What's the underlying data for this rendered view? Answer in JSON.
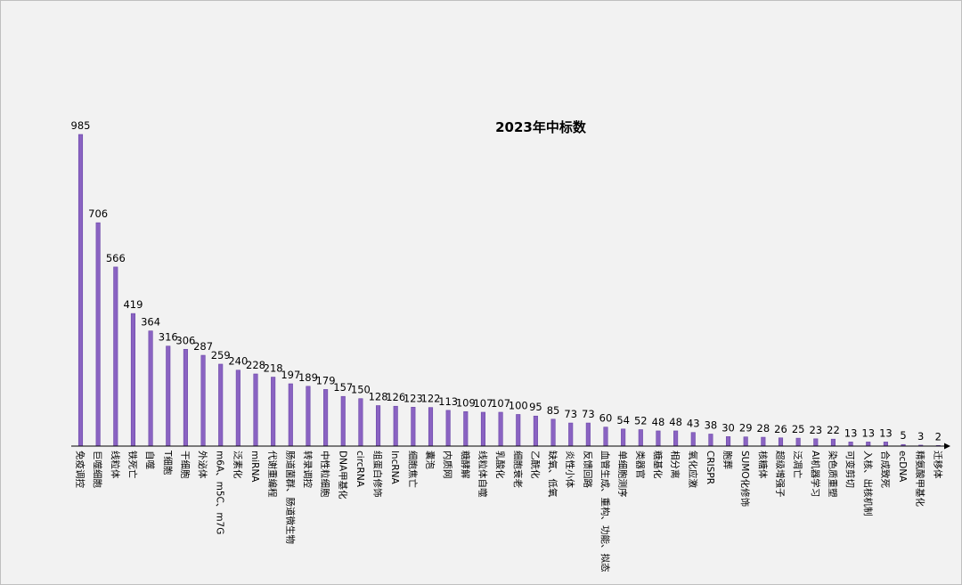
{
  "chart_data": {
    "type": "bar",
    "title": "2023年中标数",
    "xlabel": "",
    "ylabel": "",
    "ylim": [
      0,
      985
    ],
    "grid": false,
    "legend": "none",
    "bar_color": "#8a63c2",
    "bar_edge_color": "#6b46a8",
    "categories": [
      "免疫调控",
      "巨噬细胞",
      "线粒体",
      "铁死亡",
      "自噬",
      "T细胞",
      "干细胞",
      "外泌体",
      "m6A、m5C、m7G",
      "泛素化",
      "miRNA",
      "代谢重编程",
      "肠道菌群、肠道微生物",
      "转录调控",
      "中性粒细胞",
      "DNA甲基化",
      "circRNA",
      "组蛋白修饰",
      "lncRNA",
      "细胞焦亡",
      "囊泡",
      "内质网",
      "糖酵解",
      "线粒体自噬",
      "乳酸化",
      "细胞衰老",
      "乙酰化",
      "缺氧、低氧",
      "炎性小体",
      "反馈回路",
      "血管生成、重构、功能、拟态",
      "单细胞测序",
      "类器官",
      "糖基化",
      "相分离",
      "氧化应激",
      "CRISPR",
      "胞葬",
      "SUMO化修饰",
      "核糖体",
      "超级增强子",
      "泛凋亡",
      "AI机器学习",
      "染色质重塑",
      "可变剪切",
      "入核、出核机制",
      "合成致死",
      "ecDNA",
      "精氨酸甲基化",
      "迁移体"
    ],
    "values": [
      985,
      706,
      566,
      419,
      364,
      316,
      306,
      287,
      259,
      240,
      228,
      218,
      197,
      189,
      179,
      157,
      150,
      128,
      126,
      123,
      122,
      113,
      109,
      107,
      107,
      100,
      95,
      85,
      73,
      73,
      60,
      54,
      52,
      48,
      48,
      43,
      38,
      30,
      29,
      28,
      26,
      25,
      23,
      22,
      13,
      13,
      13,
      5,
      3,
      2
    ]
  }
}
